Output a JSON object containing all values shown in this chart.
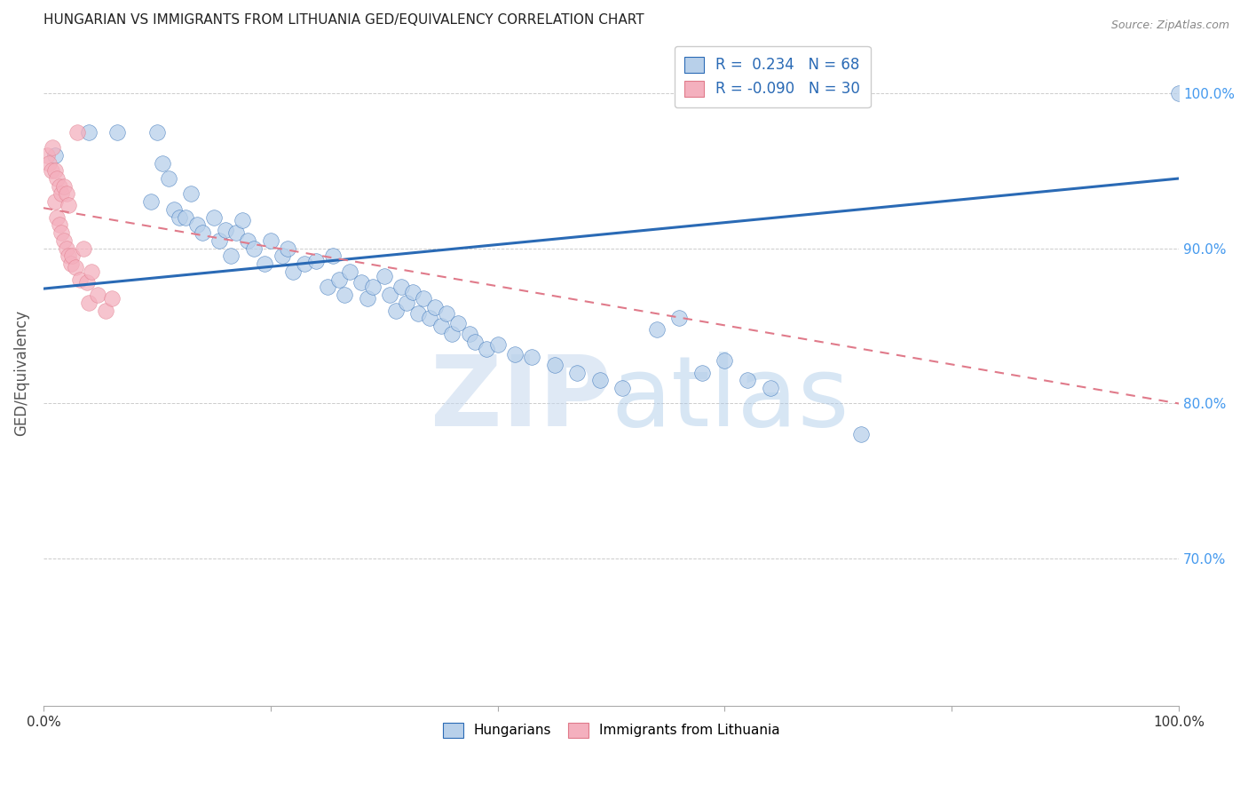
{
  "title": "HUNGARIAN VS IMMIGRANTS FROM LITHUANIA GED/EQUIVALENCY CORRELATION CHART",
  "source": "Source: ZipAtlas.com",
  "ylabel": "GED/Equivalency",
  "watermark": "ZIPatlas",
  "xlim": [
    0.0,
    1.0
  ],
  "ylim": [
    0.605,
    1.035
  ],
  "legend_entries": [
    {
      "label": "R =  0.234   N = 68",
      "color": "#aec6e8"
    },
    {
      "label": "R = -0.090   N = 30",
      "color": "#f4b8c1"
    }
  ],
  "blue_scatter_color": "#b8d0ea",
  "pink_scatter_color": "#f4b0be",
  "blue_line_color": "#2a6ab5",
  "pink_line_color": "#e07a8a",
  "grid_color": "#cccccc",
  "title_color": "#222222",
  "right_axis_color": "#4499ee",
  "blue_line_x0": 0.0,
  "blue_line_x1": 1.0,
  "blue_line_y0": 0.874,
  "blue_line_y1": 0.945,
  "pink_line_x0": 0.0,
  "pink_line_x1": 1.0,
  "pink_line_y0": 0.926,
  "pink_line_y1": 0.8,
  "blue_scatter_x": [
    0.01,
    0.04,
    0.065,
    0.095,
    0.1,
    0.105,
    0.11,
    0.115,
    0.12,
    0.125,
    0.13,
    0.135,
    0.14,
    0.15,
    0.155,
    0.16,
    0.165,
    0.17,
    0.175,
    0.18,
    0.185,
    0.195,
    0.2,
    0.21,
    0.215,
    0.22,
    0.23,
    0.24,
    0.25,
    0.255,
    0.26,
    0.265,
    0.27,
    0.28,
    0.285,
    0.29,
    0.3,
    0.305,
    0.31,
    0.315,
    0.32,
    0.325,
    0.33,
    0.335,
    0.34,
    0.345,
    0.35,
    0.355,
    0.36,
    0.365,
    0.375,
    0.38,
    0.39,
    0.4,
    0.415,
    0.43,
    0.45,
    0.47,
    0.49,
    0.51,
    0.54,
    0.56,
    0.58,
    0.6,
    0.62,
    0.64,
    0.72,
    1.0
  ],
  "blue_scatter_y": [
    0.96,
    0.975,
    0.975,
    0.93,
    0.975,
    0.955,
    0.945,
    0.925,
    0.92,
    0.92,
    0.935,
    0.915,
    0.91,
    0.92,
    0.905,
    0.912,
    0.895,
    0.91,
    0.918,
    0.905,
    0.9,
    0.89,
    0.905,
    0.895,
    0.9,
    0.885,
    0.89,
    0.892,
    0.875,
    0.895,
    0.88,
    0.87,
    0.885,
    0.878,
    0.868,
    0.875,
    0.882,
    0.87,
    0.86,
    0.875,
    0.865,
    0.872,
    0.858,
    0.868,
    0.855,
    0.862,
    0.85,
    0.858,
    0.845,
    0.852,
    0.845,
    0.84,
    0.835,
    0.838,
    0.832,
    0.83,
    0.825,
    0.82,
    0.815,
    0.81,
    0.848,
    0.855,
    0.82,
    0.828,
    0.815,
    0.81,
    0.78,
    1.0
  ],
  "pink_scatter_x": [
    0.003,
    0.005,
    0.007,
    0.008,
    0.01,
    0.01,
    0.012,
    0.012,
    0.014,
    0.014,
    0.016,
    0.016,
    0.018,
    0.018,
    0.02,
    0.02,
    0.022,
    0.022,
    0.024,
    0.025,
    0.028,
    0.03,
    0.032,
    0.035,
    0.038,
    0.04,
    0.042,
    0.048,
    0.055,
    0.06
  ],
  "pink_scatter_y": [
    0.96,
    0.955,
    0.95,
    0.965,
    0.95,
    0.93,
    0.945,
    0.92,
    0.94,
    0.915,
    0.935,
    0.91,
    0.94,
    0.905,
    0.935,
    0.9,
    0.928,
    0.895,
    0.89,
    0.895,
    0.888,
    0.975,
    0.88,
    0.9,
    0.878,
    0.865,
    0.885,
    0.87,
    0.86,
    0.868
  ]
}
